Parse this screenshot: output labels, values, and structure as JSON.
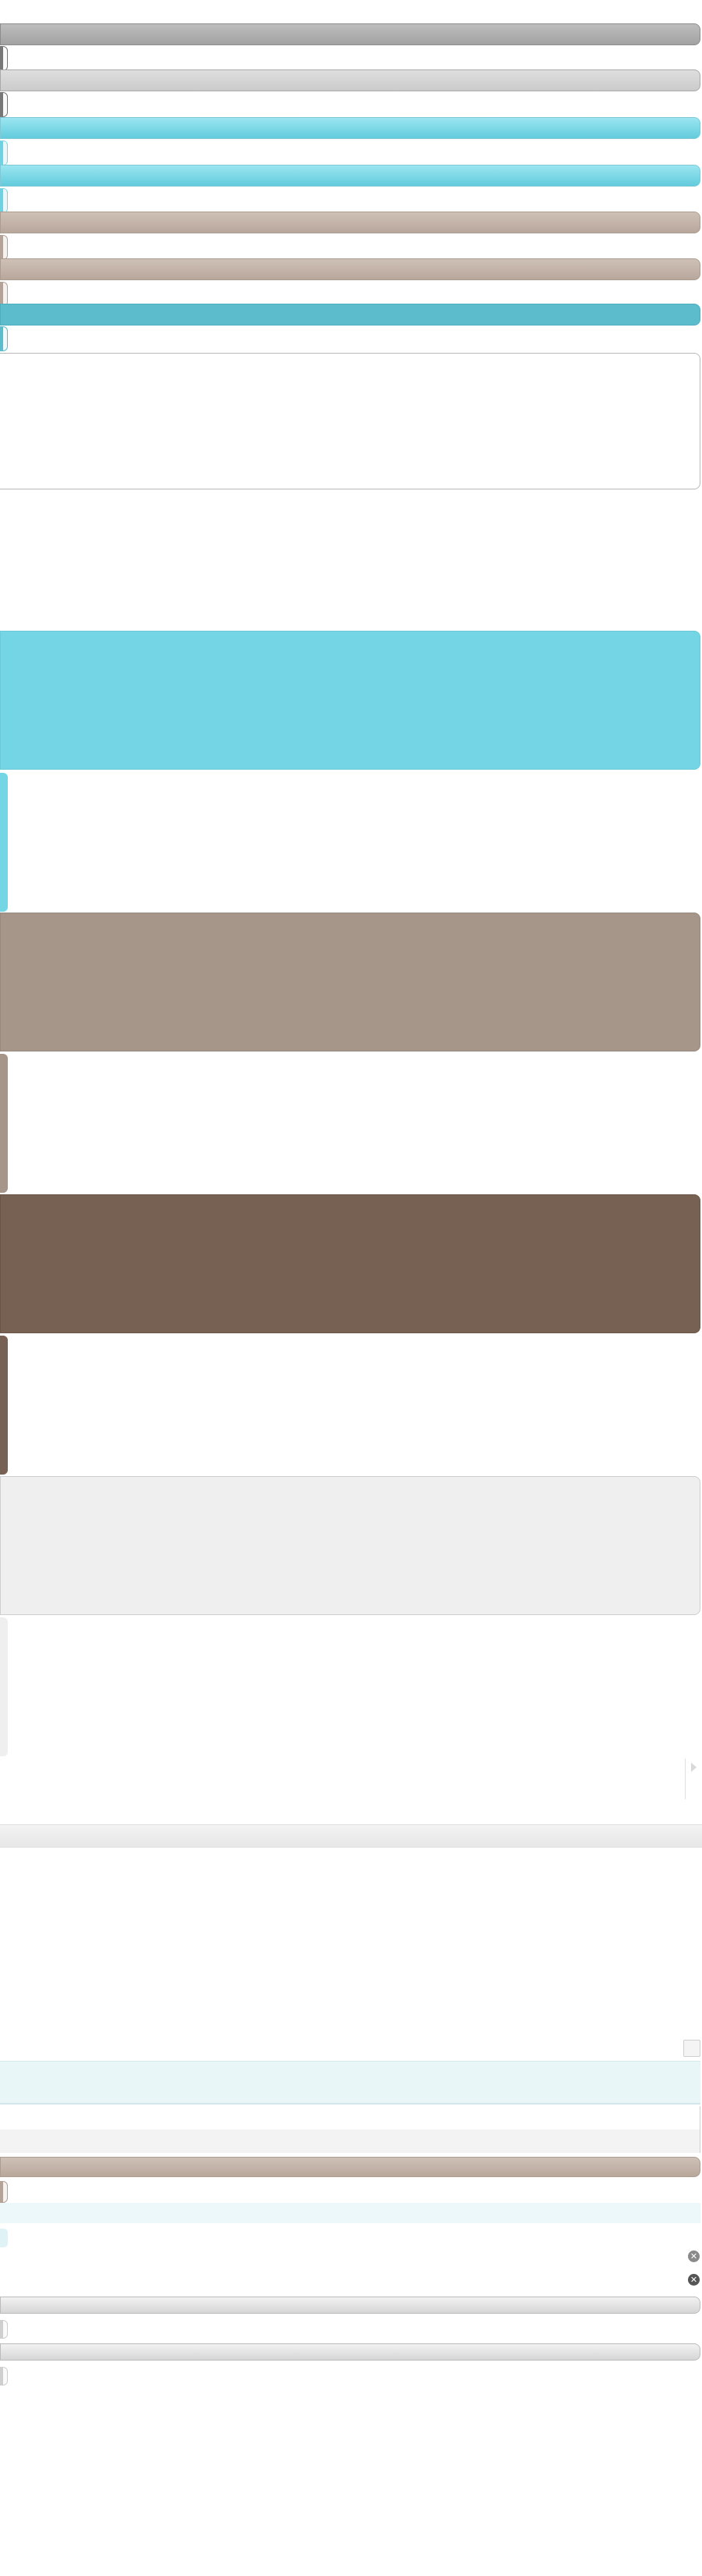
{
  "colors": {
    "gray": "#a8a8a8",
    "light_gray": "#d2d2d2",
    "cyan": "#74d5e4",
    "taupe": "#a69589",
    "dark_brown": "#776152",
    "teal": "#5cbccb",
    "pale_gray": "#efefef",
    "pale_cyan": "#e9f6f7",
    "silver": "#e0e0e0"
  },
  "icons": {
    "right_arrow": "triangle-right",
    "close_1": "close-circle",
    "close_2": "close-circle"
  },
  "labels": {
    "close_glyph": "✕"
  }
}
